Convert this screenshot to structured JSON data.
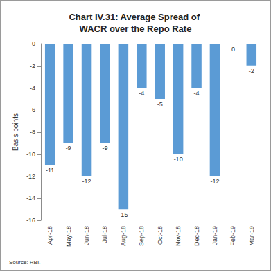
{
  "chart_data": {
    "type": "bar",
    "title": "Chart IV.31: Average Spread of WACR over the Repo Rate",
    "y_label": "Basis points",
    "source": "Source: RBI.",
    "categories": [
      "Apr-18",
      "May-18",
      "Jun-18",
      "Jul-18",
      "Aug-18",
      "Sep-18",
      "Oct-18",
      "Nov-18",
      "Dec-18",
      "Jan-19",
      "Feb-19",
      "Mar-19"
    ],
    "values": [
      -11,
      -9,
      -12,
      -9,
      -15,
      -4,
      -5,
      -10,
      -4,
      -12,
      0,
      -2
    ],
    "color": "#5b9bd5",
    "ylim": [
      -16,
      0
    ],
    "yticks": [
      -16,
      -14,
      -12,
      -10,
      -8,
      -6,
      -4,
      -2,
      0
    ],
    "grid": false,
    "data_labels": true
  }
}
